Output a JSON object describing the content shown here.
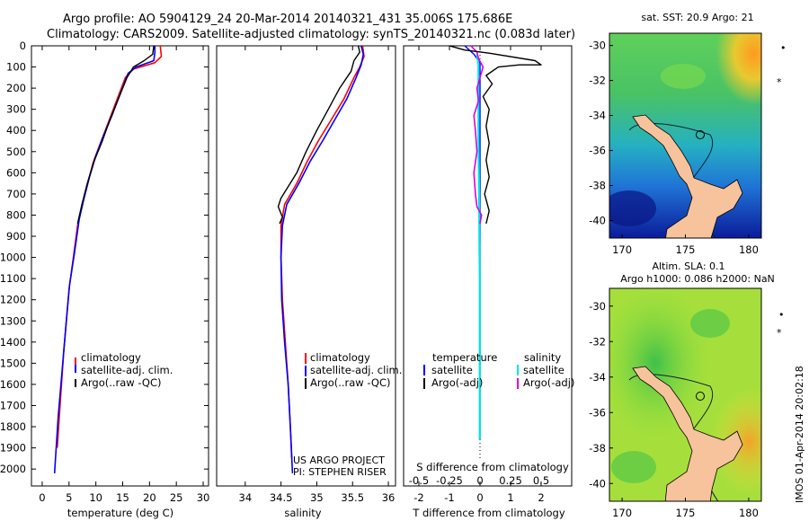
{
  "header": {
    "line1": "Argo profile: AO 5904129_24 20-Mar-2014 20140321_431 35.006S 175.686E",
    "line2": "Climatology: CARS2009. Satellite-adjusted climatology: synTS_20140321.nc (0.083d later)"
  },
  "colors": {
    "climatology": "#ff0000",
    "satellite": "#0000ff",
    "argo": "#000000",
    "sal_satellite": "#00e5e5",
    "sal_argo": "#dd00dd"
  },
  "chart_data": [
    {
      "id": "temperature",
      "type": "line",
      "xlabel": "temperature (deg C)",
      "ylabel": "",
      "xlim": [
        -2,
        31
      ],
      "ylim": [
        2080,
        0
      ],
      "xticks": [
        0,
        5,
        10,
        15,
        20,
        25,
        30
      ],
      "yticks": [
        0,
        100,
        200,
        300,
        400,
        500,
        600,
        700,
        800,
        900,
        1000,
        1100,
        1200,
        1300,
        1400,
        1500,
        1600,
        1700,
        1800,
        1900,
        2000
      ],
      "legend": [
        "climatology",
        "satellite-adj. clim.",
        "Argo(..raw -QC)"
      ],
      "series": [
        {
          "name": "climatology",
          "color": "#ff0000",
          "width": 1.6,
          "points": [
            [
              22.0,
              0
            ],
            [
              22.2,
              50
            ],
            [
              21.0,
              80
            ],
            [
              17.0,
              110
            ],
            [
              15.5,
              150
            ],
            [
              14.0,
              250
            ],
            [
              12.5,
              350
            ],
            [
              11.0,
              450
            ],
            [
              9.5,
              550
            ],
            [
              8.5,
              650
            ],
            [
              7.5,
              750
            ],
            [
              6.6,
              850
            ],
            [
              5.8,
              1000
            ],
            [
              5.0,
              1150
            ],
            [
              4.5,
              1300
            ],
            [
              4.0,
              1450
            ],
            [
              3.6,
              1600
            ],
            [
              3.2,
              1750
            ],
            [
              2.8,
              1900
            ]
          ]
        },
        {
          "name": "satellite-adj. clim.",
          "color": "#0000ff",
          "width": 1.6,
          "points": [
            [
              21.0,
              0
            ],
            [
              21.0,
              30
            ],
            [
              20.8,
              70
            ],
            [
              17.5,
              100
            ],
            [
              16.0,
              130
            ],
            [
              14.5,
              230
            ],
            [
              13.0,
              330
            ],
            [
              11.5,
              420
            ],
            [
              10.0,
              520
            ],
            [
              8.8,
              620
            ],
            [
              7.8,
              720
            ],
            [
              6.9,
              820
            ],
            [
              6.0,
              980
            ],
            [
              5.1,
              1130
            ],
            [
              4.5,
              1300
            ],
            [
              4.0,
              1450
            ],
            [
              3.5,
              1600
            ],
            [
              3.0,
              1750
            ],
            [
              2.6,
              1900
            ],
            [
              2.3,
              2020
            ]
          ]
        },
        {
          "name": "Argo(..raw -QC)",
          "color": "#000000",
          "width": 1.4,
          "points": [
            [
              20.8,
              0
            ],
            [
              20.6,
              40
            ],
            [
              19.0,
              70
            ],
            [
              17.0,
              100
            ],
            [
              15.8,
              150
            ],
            [
              14.2,
              250
            ],
            [
              12.6,
              350
            ],
            [
              11.2,
              450
            ],
            [
              9.6,
              550
            ],
            [
              8.4,
              650
            ],
            [
              7.4,
              750
            ],
            [
              6.6,
              840
            ]
          ]
        }
      ]
    },
    {
      "id": "salinity",
      "type": "line",
      "xlabel": "salinity",
      "xlim": [
        33.6,
        36.1
      ],
      "ylim": [
        2080,
        0
      ],
      "xticks": [
        34,
        34.5,
        35,
        35.5,
        36
      ],
      "legend": [
        "climatology",
        "satellite-adj. clim.",
        "Argo(..raw -QC)"
      ],
      "annotation": [
        "US ARGO PROJECT",
        "PI: STEPHEN RISER"
      ],
      "series": [
        {
          "name": "climatology",
          "color": "#ff0000",
          "width": 1.6,
          "points": [
            [
              35.64,
              0
            ],
            [
              35.66,
              50
            ],
            [
              35.6,
              100
            ],
            [
              35.52,
              150
            ],
            [
              35.38,
              250
            ],
            [
              35.2,
              350
            ],
            [
              35.02,
              450
            ],
            [
              34.86,
              550
            ],
            [
              34.72,
              650
            ],
            [
              34.55,
              750
            ],
            [
              34.5,
              850
            ],
            [
              34.5,
              1000
            ],
            [
              34.52,
              1200
            ],
            [
              34.56,
              1400
            ],
            [
              34.6,
              1600
            ],
            [
              34.63,
              1800
            ],
            [
              34.65,
              1950
            ]
          ]
        },
        {
          "name": "satellite-adj. clim.",
          "color": "#0000ff",
          "width": 1.6,
          "points": [
            [
              35.62,
              0
            ],
            [
              35.65,
              40
            ],
            [
              35.62,
              90
            ],
            [
              35.55,
              150
            ],
            [
              35.42,
              250
            ],
            [
              35.25,
              350
            ],
            [
              35.08,
              450
            ],
            [
              34.9,
              550
            ],
            [
              34.75,
              650
            ],
            [
              34.58,
              750
            ],
            [
              34.52,
              850
            ],
            [
              34.5,
              1000
            ],
            [
              34.51,
              1200
            ],
            [
              34.55,
              1400
            ],
            [
              34.6,
              1600
            ],
            [
              34.63,
              1800
            ],
            [
              34.66,
              2020
            ]
          ]
        },
        {
          "name": "Argo(..raw -QC)",
          "color": "#000000",
          "width": 1.4,
          "points": [
            [
              35.58,
              0
            ],
            [
              35.6,
              30
            ],
            [
              35.52,
              70
            ],
            [
              35.48,
              120
            ],
            [
              35.32,
              200
            ],
            [
              35.16,
              300
            ],
            [
              35.0,
              400
            ],
            [
              34.85,
              500
            ],
            [
              34.72,
              600
            ],
            [
              34.5,
              720
            ],
            [
              34.46,
              760
            ],
            [
              34.52,
              810
            ],
            [
              34.48,
              840
            ]
          ]
        }
      ]
    },
    {
      "id": "difference",
      "type": "line",
      "xlabel": "T difference from climatology",
      "x2label": "S difference from climatology",
      "xlim": [
        -2.5,
        3.0
      ],
      "ylim": [
        2080,
        0
      ],
      "xticks": [
        -2,
        -1,
        0,
        1,
        2
      ],
      "x2ticks": [
        -0.5,
        -0.25,
        0,
        0.25,
        0.5
      ],
      "x2tick_labels": [
        "-0.5",
        "-0.25",
        "0",
        "0.25",
        "0.5"
      ],
      "legend_temperature": {
        "title": "temperature",
        "items": [
          "satellite",
          "Argo(-adj)"
        ]
      },
      "legend_salinity": {
        "title": "salinity",
        "items": [
          "satellite",
          "Argo(-adj)"
        ]
      },
      "series": [
        {
          "name": "T satellite",
          "color": "#0000ff",
          "width": 1.4,
          "points": [
            [
              -0.5,
              0
            ],
            [
              -0.2,
              40
            ],
            [
              0.0,
              80
            ],
            [
              0.0,
              100
            ],
            [
              0.0,
              300
            ],
            [
              0.0,
              600
            ],
            [
              0.0,
              900
            ],
            [
              0.0,
              1200
            ],
            [
              0.0,
              1500
            ],
            [
              0.0,
              1800
            ],
            [
              0.0,
              1860
            ]
          ]
        },
        {
          "name": "S satellite",
          "color": "#00e5e5",
          "width": 2.2,
          "points": [
            [
              -0.1,
              40
            ],
            [
              -0.05,
              90
            ],
            [
              -0.05,
              150
            ],
            [
              -0.05,
              250
            ],
            [
              -0.05,
              400
            ],
            [
              -0.04,
              550
            ],
            [
              -0.03,
              700
            ],
            [
              -0.02,
              900
            ],
            [
              -0.01,
              1100
            ],
            [
              -0.01,
              1400
            ],
            [
              -0.01,
              1700
            ],
            [
              -0.01,
              1860
            ]
          ]
        },
        {
          "name": "S Argo(-adj)",
          "color": "#dd00dd",
          "width": 1.6,
          "points": [
            [
              -0.3,
              0
            ],
            [
              -0.1,
              30
            ],
            [
              -0.05,
              60
            ],
            [
              0.1,
              100
            ],
            [
              -0.1,
              200
            ],
            [
              -0.05,
              260
            ],
            [
              -0.2,
              330
            ],
            [
              -0.15,
              400
            ],
            [
              -0.1,
              500
            ],
            [
              -0.2,
              600
            ],
            [
              -0.15,
              700
            ],
            [
              -0.1,
              760
            ],
            [
              0.05,
              800
            ],
            [
              0.0,
              840
            ]
          ]
        },
        {
          "name": "T Argo(-adj)",
          "color": "#000000",
          "width": 1.4,
          "points": [
            [
              -1.0,
              0
            ],
            [
              -0.5,
              20
            ],
            [
              0.3,
              35
            ],
            [
              1.8,
              70
            ],
            [
              2.0,
              90
            ],
            [
              1.3,
              90
            ],
            [
              0.6,
              100
            ],
            [
              0.2,
              140
            ],
            [
              0.4,
              180
            ],
            [
              0.1,
              240
            ],
            [
              0.3,
              300
            ],
            [
              0.2,
              380
            ],
            [
              0.3,
              460
            ],
            [
              0.2,
              540
            ],
            [
              0.3,
              620
            ],
            [
              0.15,
              700
            ],
            [
              0.3,
              780
            ],
            [
              0.2,
              840
            ]
          ]
        }
      ]
    }
  ],
  "maps": [
    {
      "id": "sst-map",
      "title1": "sat. SST: 20.9 Argo: 21",
      "title2": "",
      "xticks": [
        170,
        175,
        180
      ],
      "yticks": [
        -30,
        -32,
        -34,
        -36,
        -38,
        -40
      ]
    },
    {
      "id": "sla-map",
      "title1": "Altim. SLA: 0.1",
      "title2": "Argo h1000: 0.086 h2000: NaN",
      "xticks": [
        170,
        175,
        180
      ],
      "yticks": [
        -30,
        -32,
        -34,
        -36,
        -38,
        -40
      ]
    }
  ],
  "watermark": "IMOS 01-Apr-2014 20:02:18"
}
